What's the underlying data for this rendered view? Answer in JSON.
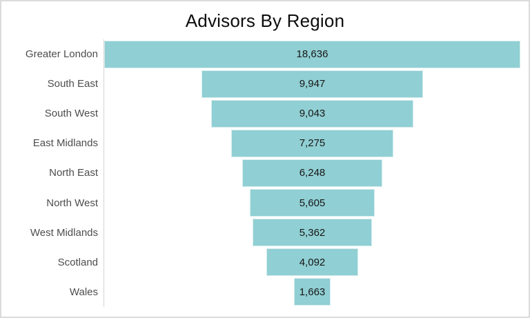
{
  "title": "Advisors By Region",
  "colors": {
    "bar": "#90CFD3",
    "bar_border": "#D5ECEE",
    "category_label": "#4D4D4D",
    "value_label": "#171717",
    "axis_line": "#D5D5D5",
    "frame_border": "#DBDBDB",
    "background": "#FFFFFF",
    "title": "#0D0D0D"
  },
  "chart_data": {
    "type": "bar",
    "subtype": "funnel",
    "orientation": "horizontal-centered",
    "title": "Advisors By Region",
    "xlabel": "",
    "ylabel": "",
    "legend": "none",
    "grid": "off",
    "max_value": 18636,
    "categories": [
      "Greater London",
      "South East",
      "South West",
      "East Midlands",
      "North East",
      "North West",
      "West Midlands",
      "Scotland",
      "Wales"
    ],
    "values": [
      18636,
      9947,
      9043,
      7275,
      6248,
      5605,
      5362,
      4092,
      1663
    ],
    "value_labels": [
      "18,636",
      "9,947",
      "9,043",
      "7,275",
      "6,248",
      "5,605",
      "5,362",
      "4,092",
      "1,663"
    ]
  }
}
